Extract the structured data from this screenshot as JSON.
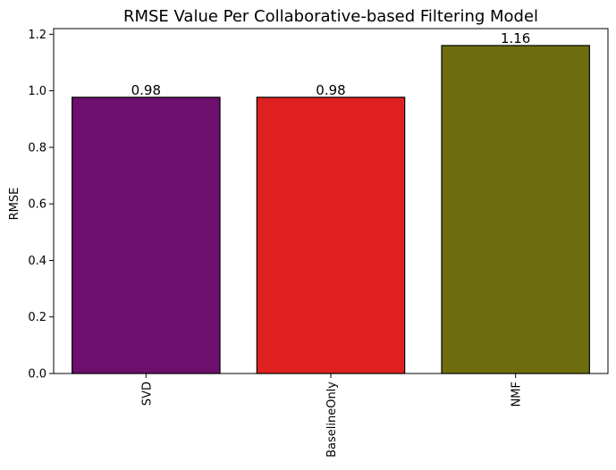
{
  "chart_data": {
    "type": "bar",
    "title": "RMSE Value Per Collaborative-based Filtering Model",
    "xlabel": "",
    "ylabel": "RMSE",
    "categories": [
      "SVD",
      "BaselineOnly",
      "NMF"
    ],
    "values": [
      0.977,
      0.977,
      1.16
    ],
    "data_labels": [
      "0.98",
      "0.98",
      "1.16"
    ],
    "colors": [
      "#6d0f6d",
      "#de2020",
      "#6e6e10"
    ],
    "ylim": [
      0,
      1.22
    ],
    "yticks": [
      "0.0",
      "0.2",
      "0.4",
      "0.6",
      "0.8",
      "1.0",
      "1.2"
    ],
    "ytick_values": [
      0,
      0.2,
      0.4,
      0.6,
      0.8,
      1.0,
      1.2
    ],
    "grid": false,
    "legend": "none"
  }
}
